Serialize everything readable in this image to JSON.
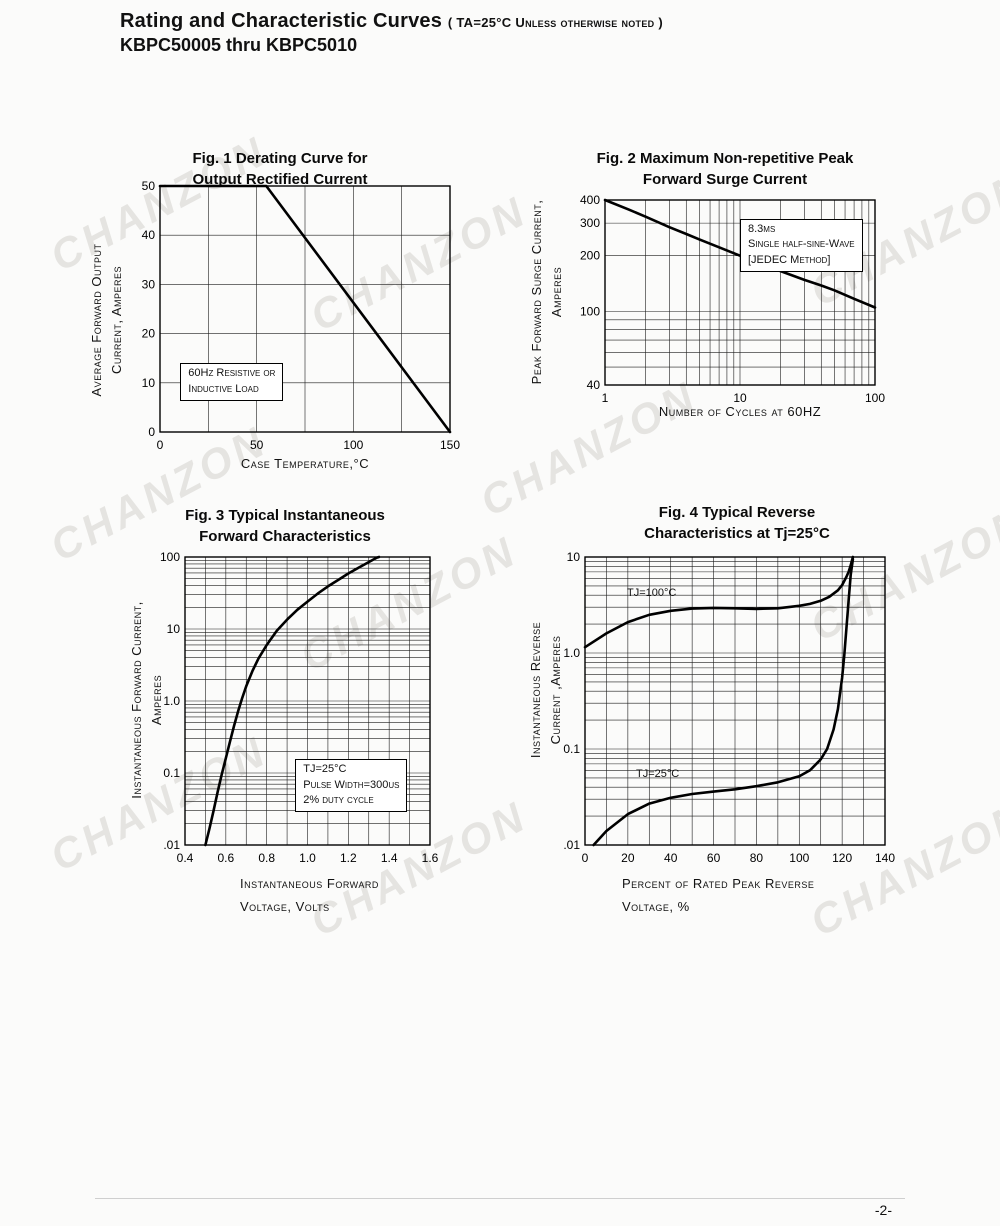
{
  "page": {
    "title_line1": "Rating and Characteristic Curves",
    "title_note": "( TA=25°C Unless otherwise noted )",
    "title_line2": "KBPC50005 thru KBPC5010",
    "watermark": "CHANZON",
    "footer_page_number": "-2-"
  },
  "chart_data": [
    {
      "type": "line",
      "title": "Fig. 1 Derating Curve for Output Rectified Current",
      "title_lines": [
        "Fig. 1 Derating Curve for",
        "Output Rectified Current"
      ],
      "xlabel_lines": [
        "Case Temperature,°C"
      ],
      "ylabel_lines": [
        "Average Forward Output",
        "Current, Amperes"
      ],
      "x_scale": "linear",
      "y_scale": "linear",
      "xlim": [
        0,
        150
      ],
      "ylim": [
        0,
        50
      ],
      "x_ticks": [
        [
          0,
          "0"
        ],
        [
          50,
          "50"
        ],
        [
          100,
          "100"
        ],
        [
          150,
          "150"
        ]
      ],
      "y_ticks": [
        [
          0,
          "0"
        ],
        [
          10,
          "10"
        ],
        [
          20,
          "20"
        ],
        [
          30,
          "30"
        ],
        [
          40,
          "40"
        ],
        [
          50,
          "50"
        ]
      ],
      "x_grid": [
        25,
        50,
        75,
        100,
        125
      ],
      "y_grid": [
        10,
        20,
        30,
        40
      ],
      "grid": true,
      "series": [
        {
          "name": "Average forward output current vs case temperature",
          "points": [
            [
              0,
              50
            ],
            [
              55,
              50
            ],
            [
              150,
              0
            ]
          ]
        }
      ],
      "annotations": [
        {
          "lines": [
            "60Hz Resistive or",
            "Inductive Load"
          ],
          "x": 0.07,
          "y": 0.72,
          "box": true
        }
      ]
    },
    {
      "type": "line",
      "title": "Fig. 2 Maximum Non-repetitive Peak Forward Surge Current",
      "title_lines": [
        "Fig. 2 Maximum Non-repetitive Peak",
        "Forward Surge Current"
      ],
      "xlabel_lines": [
        "Number of Cycles at 60HZ"
      ],
      "ylabel_lines": [
        "Peak Forward Surge Current,",
        "Amperes"
      ],
      "x_scale": "log",
      "y_scale": "log",
      "xlim": [
        1,
        100
      ],
      "ylim": [
        40,
        400
      ],
      "x_ticks": [
        [
          1,
          "1"
        ],
        [
          10,
          "10"
        ],
        [
          100,
          "100"
        ]
      ],
      "y_ticks": [
        [
          40,
          "40"
        ],
        [
          100,
          "100"
        ],
        [
          200,
          "200"
        ],
        [
          300,
          "300"
        ],
        [
          400,
          "400"
        ]
      ],
      "x_grid": [
        2,
        3,
        4,
        5,
        6,
        7,
        8,
        9,
        10,
        20,
        30,
        40,
        50,
        60,
        70,
        80,
        90
      ],
      "y_grid": [
        50,
        60,
        70,
        80,
        90,
        100,
        200,
        300
      ],
      "grid": true,
      "series": [
        {
          "name": "Peak forward surge current vs number of cycles",
          "points": [
            [
              1,
              400
            ],
            [
              1.5,
              355
            ],
            [
              2,
              325
            ],
            [
              3,
              285
            ],
            [
              4,
              262
            ],
            [
              5,
              245
            ],
            [
              7,
              222
            ],
            [
              10,
              200
            ],
            [
              15,
              178
            ],
            [
              20,
              165
            ],
            [
              30,
              148
            ],
            [
              40,
              138
            ],
            [
              50,
              130
            ],
            [
              70,
              117
            ],
            [
              100,
              105
            ]
          ]
        }
      ],
      "annotations": [
        {
          "lines": [
            "8.3ms",
            "Single half-sine-Wave",
            "[JEDEC Method]"
          ],
          "x": 0.5,
          "y": 0.1,
          "box": true
        }
      ]
    },
    {
      "type": "line",
      "title": "Fig. 3 Typical Instantaneous Forward Characteristics",
      "title_lines": [
        "Fig. 3 Typical Instantaneous",
        "Forward Characteristics"
      ],
      "xlabel_lines": [
        "Instantaneous Forward",
        "Voltage, Volts"
      ],
      "ylabel_lines": [
        "Instantaneous Forward Current,",
        "Amperes"
      ],
      "x_scale": "linear",
      "y_scale": "log",
      "xlim": [
        0.4,
        1.6
      ],
      "ylim": [
        0.01,
        100
      ],
      "x_ticks": [
        [
          0.4,
          "0.4"
        ],
        [
          0.6,
          "0.6"
        ],
        [
          0.8,
          "0.8"
        ],
        [
          1.0,
          "1.0"
        ],
        [
          1.2,
          "1.2"
        ],
        [
          1.4,
          "1.4"
        ],
        [
          1.6,
          "1.6"
        ]
      ],
      "y_ticks": [
        [
          0.01,
          ".01"
        ],
        [
          0.1,
          "0.1"
        ],
        [
          1,
          "1.0"
        ],
        [
          10,
          "10"
        ],
        [
          100,
          "100"
        ]
      ],
      "x_grid": [
        0.5,
        0.6,
        0.7,
        0.8,
        0.9,
        1.0,
        1.1,
        1.2,
        1.3,
        1.4,
        1.5
      ],
      "y_grid": [
        0.02,
        0.03,
        0.04,
        0.05,
        0.06,
        0.07,
        0.08,
        0.09,
        0.1,
        0.2,
        0.3,
        0.4,
        0.5,
        0.6,
        0.7,
        0.8,
        0.9,
        1,
        2,
        3,
        4,
        5,
        6,
        7,
        8,
        9,
        10,
        20,
        30,
        40,
        50,
        60,
        70,
        80,
        90
      ],
      "grid": true,
      "series": [
        {
          "name": "Instantaneous forward current vs forward voltage TJ=25°C",
          "points": [
            [
              0.5,
              0.01
            ],
            [
              0.52,
              0.017
            ],
            [
              0.54,
              0.03
            ],
            [
              0.56,
              0.055
            ],
            [
              0.58,
              0.095
            ],
            [
              0.6,
              0.16
            ],
            [
              0.62,
              0.27
            ],
            [
              0.64,
              0.45
            ],
            [
              0.66,
              0.72
            ],
            [
              0.68,
              1.1
            ],
            [
              0.7,
              1.6
            ],
            [
              0.73,
              2.6
            ],
            [
              0.76,
              3.9
            ],
            [
              0.8,
              6.0
            ],
            [
              0.85,
              9.5
            ],
            [
              0.9,
              13.5
            ],
            [
              0.95,
              18.5
            ],
            [
              1.0,
              24
            ],
            [
              1.05,
              31
            ],
            [
              1.1,
              39
            ],
            [
              1.15,
              48
            ],
            [
              1.2,
              59
            ],
            [
              1.25,
              71
            ],
            [
              1.3,
              85
            ],
            [
              1.34,
              98
            ],
            [
              1.35,
              100
            ]
          ]
        }
      ],
      "annotations": [
        {
          "lines": [
            "TJ=25°C",
            "Pulse Width=300us",
            "2% duty cycle"
          ],
          "x": 0.45,
          "y": 0.7,
          "box": true
        }
      ]
    },
    {
      "type": "line",
      "title": "Fig. 4 Typical Reverse Characteristics at Tj=25°C",
      "title_lines": [
        "Fig. 4 Typical Reverse",
        "Characteristics at Tj=25°C"
      ],
      "xlabel_lines": [
        "Percent of Rated Peak Reverse",
        "Voltage, %"
      ],
      "ylabel_lines": [
        "Instantaneous Reverse",
        "Current ,Amperes"
      ],
      "x_scale": "linear",
      "y_scale": "log",
      "xlim": [
        0,
        140
      ],
      "ylim": [
        0.01,
        10
      ],
      "x_ticks": [
        [
          0,
          "0"
        ],
        [
          20,
          "20"
        ],
        [
          40,
          "40"
        ],
        [
          60,
          "60"
        ],
        [
          80,
          "80"
        ],
        [
          100,
          "100"
        ],
        [
          120,
          "120"
        ],
        [
          140,
          "140"
        ]
      ],
      "y_ticks": [
        [
          0.01,
          ".01"
        ],
        [
          0.1,
          "0.1"
        ],
        [
          1,
          "1.0"
        ],
        [
          10,
          "10"
        ]
      ],
      "x_grid": [
        10,
        20,
        30,
        40,
        50,
        60,
        70,
        80,
        90,
        100,
        110,
        120,
        130
      ],
      "y_grid": [
        0.02,
        0.03,
        0.04,
        0.05,
        0.06,
        0.07,
        0.08,
        0.09,
        0.1,
        0.2,
        0.3,
        0.4,
        0.5,
        0.6,
        0.7,
        0.8,
        0.9,
        1,
        2,
        3,
        4,
        5,
        6,
        7,
        8,
        9
      ],
      "grid": true,
      "series": [
        {
          "name": "TJ=100°C",
          "points": [
            [
              0,
              1.15
            ],
            [
              10,
              1.6
            ],
            [
              20,
              2.1
            ],
            [
              30,
              2.5
            ],
            [
              40,
              2.75
            ],
            [
              50,
              2.9
            ],
            [
              60,
              2.95
            ],
            [
              70,
              2.92
            ],
            [
              80,
              2.88
            ],
            [
              90,
              2.92
            ],
            [
              100,
              3.1
            ],
            [
              105,
              3.25
            ],
            [
              110,
              3.5
            ],
            [
              114,
              3.85
            ],
            [
              118,
              4.5
            ],
            [
              120,
              5.1
            ],
            [
              122,
              6.2
            ],
            [
              123,
              7.0
            ],
            [
              124,
              8.2
            ],
            [
              125,
              10
            ]
          ]
        },
        {
          "name": "TJ=25°C",
          "points": [
            [
              4,
              0.01
            ],
            [
              10,
              0.014
            ],
            [
              20,
              0.021
            ],
            [
              30,
              0.027
            ],
            [
              40,
              0.031
            ],
            [
              50,
              0.034
            ],
            [
              60,
              0.036
            ],
            [
              70,
              0.038
            ],
            [
              80,
              0.041
            ],
            [
              90,
              0.045
            ],
            [
              100,
              0.052
            ],
            [
              105,
              0.06
            ],
            [
              110,
              0.078
            ],
            [
              113,
              0.1
            ],
            [
              116,
              0.16
            ],
            [
              118,
              0.26
            ],
            [
              120,
              0.55
            ],
            [
              121,
              0.95
            ],
            [
              122,
              1.8
            ],
            [
              123,
              3.5
            ],
            [
              124,
              6.5
            ],
            [
              125,
              9.5
            ]
          ]
        }
      ],
      "annotations": [
        {
          "lines": [
            "TJ=100°C"
          ],
          "x": 0.14,
          "y": 0.1,
          "box": false
        },
        {
          "lines": [
            "TJ=25°C"
          ],
          "x": 0.17,
          "y": 0.73,
          "box": false
        }
      ]
    }
  ]
}
